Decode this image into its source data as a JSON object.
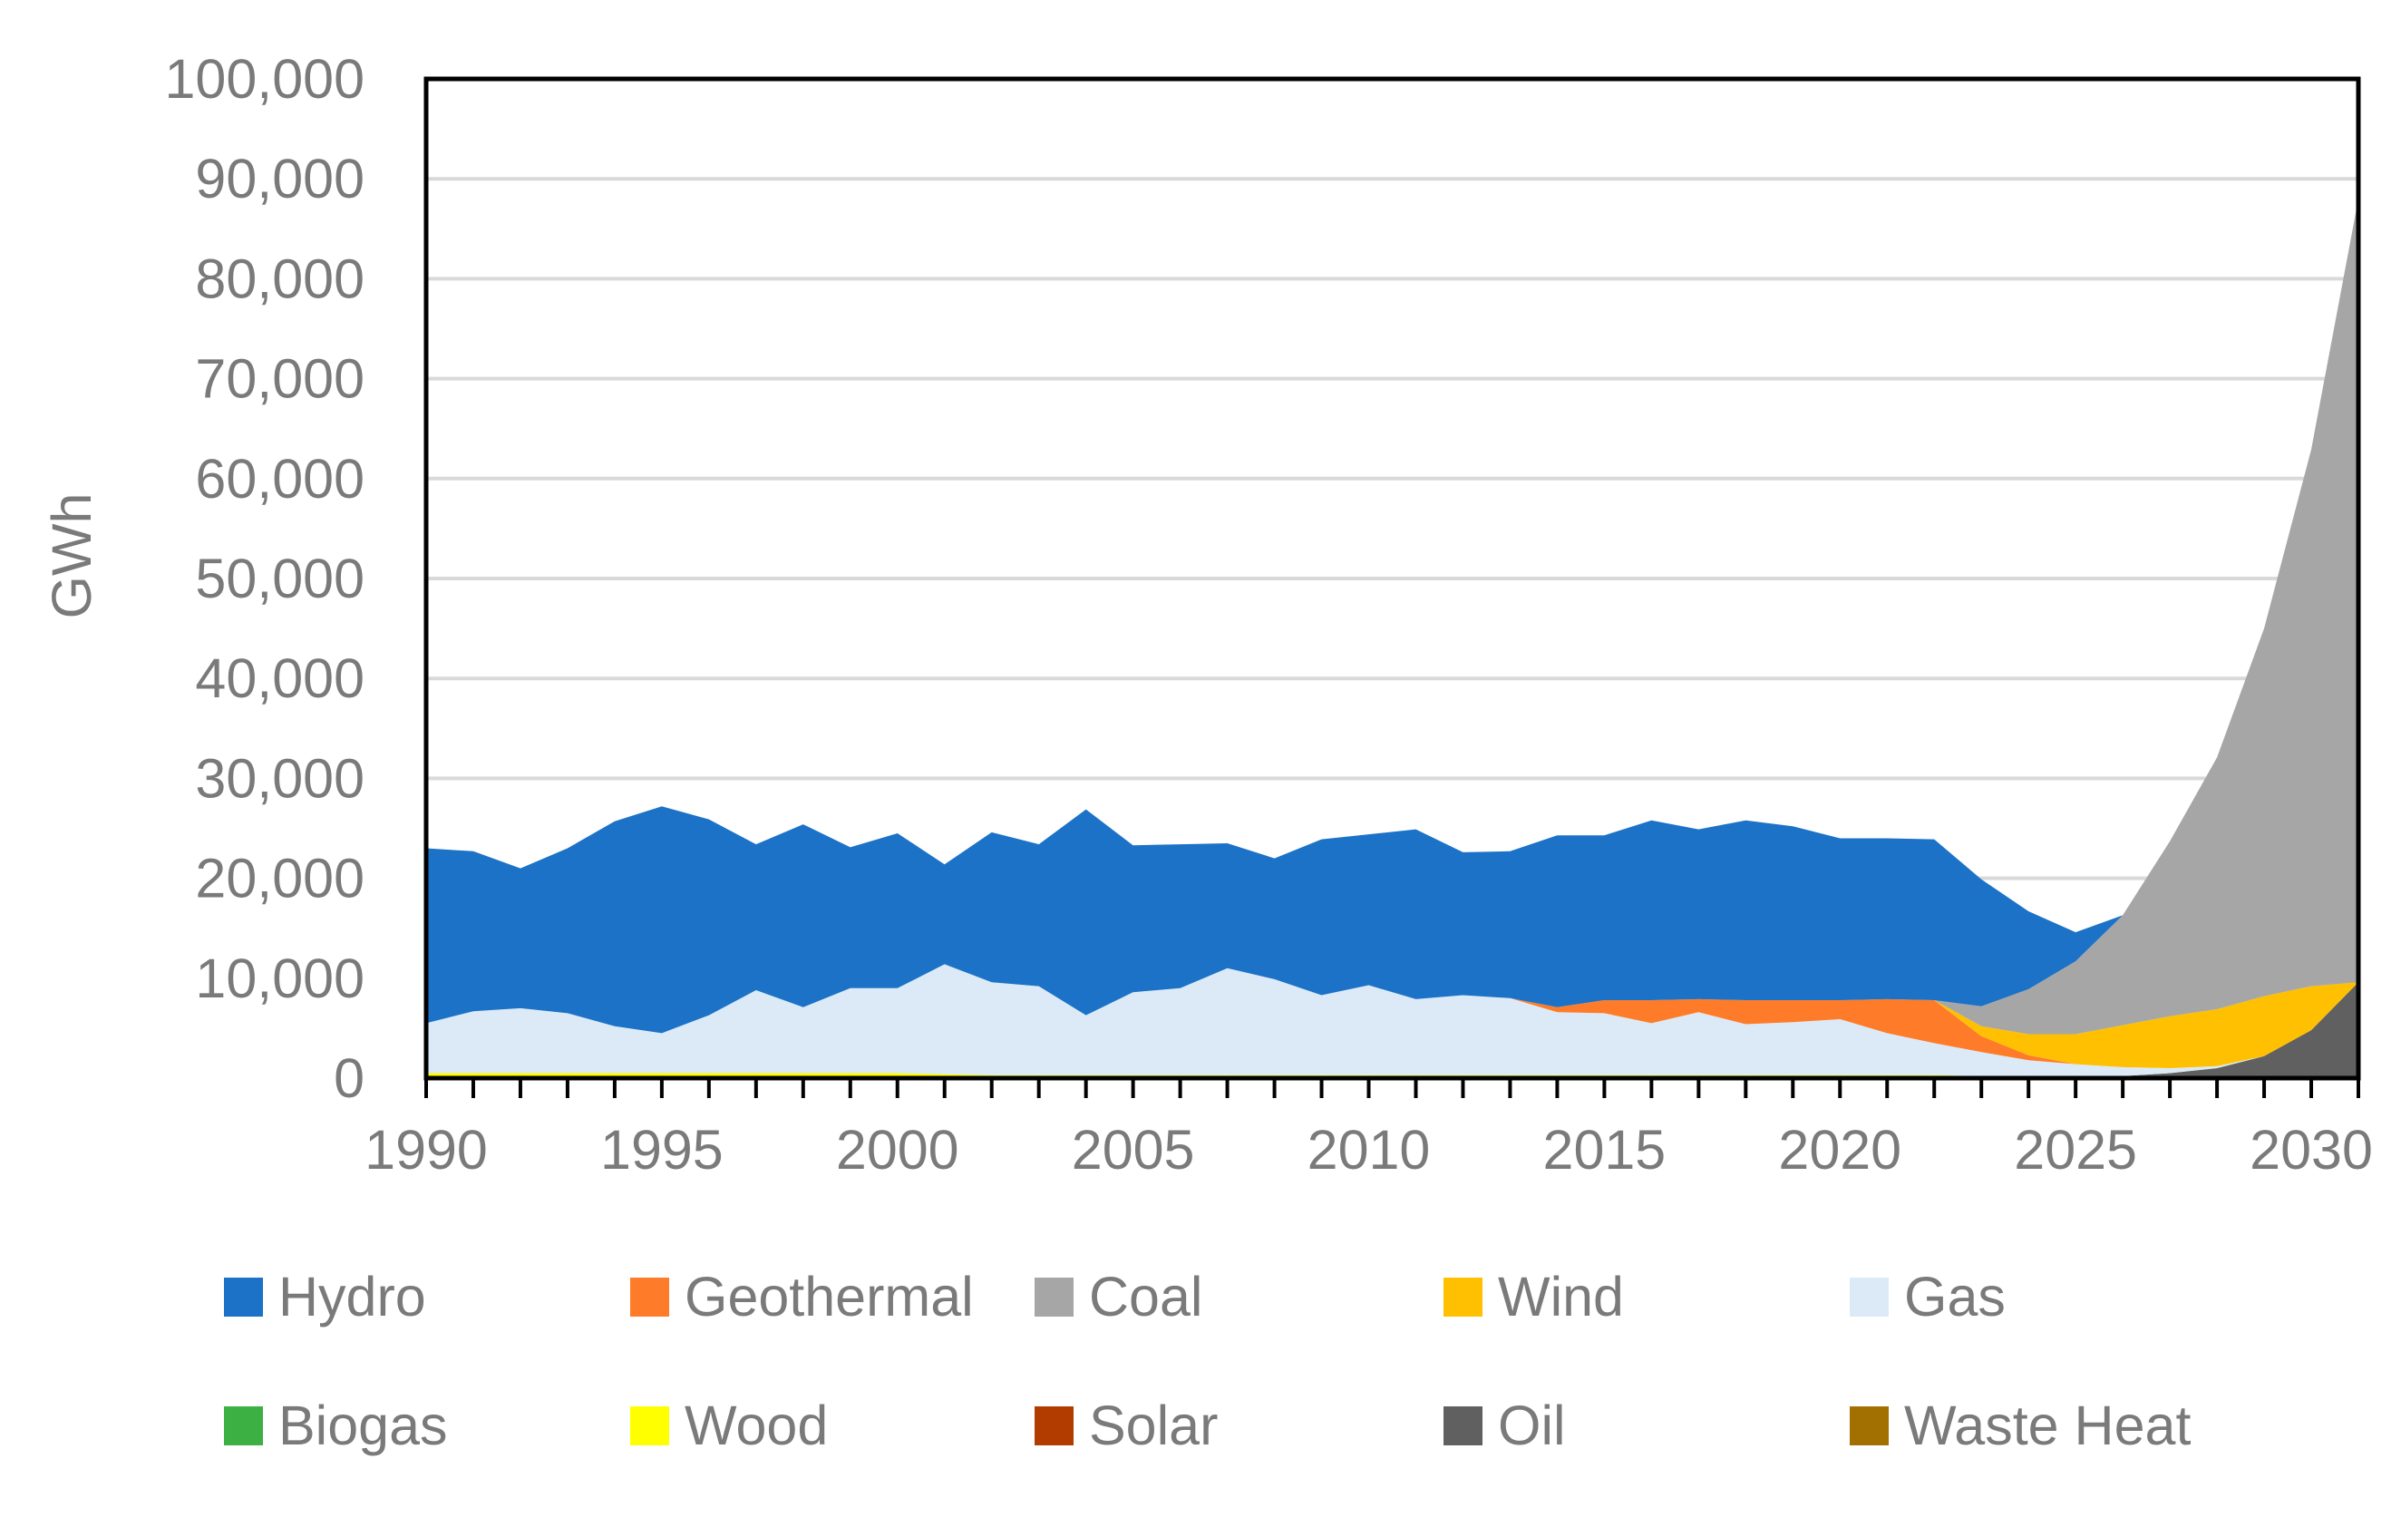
{
  "chart_data": {
    "type": "area",
    "stacked": true,
    "title": "",
    "xlabel": "",
    "ylabel": "GWh",
    "xlim": [
      1990,
      2031
    ],
    "ylim": [
      0,
      100000
    ],
    "grid": "horizontal",
    "legend_position": "bottom",
    "x_ticks": [
      {
        "value": 1990,
        "label": "1990"
      },
      {
        "value": 1995,
        "label": "1995"
      },
      {
        "value": 2000,
        "label": "2000"
      },
      {
        "value": 2005,
        "label": "2005"
      },
      {
        "value": 2010,
        "label": "2010"
      },
      {
        "value": 2015,
        "label": "2015"
      },
      {
        "value": 2020,
        "label": "2020"
      },
      {
        "value": 2025,
        "label": "2025"
      },
      {
        "value": 2030,
        "label": "2030"
      }
    ],
    "y_ticks": [
      {
        "value": 0,
        "label": "0"
      },
      {
        "value": 10000,
        "label": "10,000"
      },
      {
        "value": 20000,
        "label": "20,000"
      },
      {
        "value": 30000,
        "label": "30,000"
      },
      {
        "value": 40000,
        "label": "40,000"
      },
      {
        "value": 50000,
        "label": "50,000"
      },
      {
        "value": 60000,
        "label": "60,000"
      },
      {
        "value": 70000,
        "label": "70,000"
      },
      {
        "value": 80000,
        "label": "80,000"
      },
      {
        "value": 90000,
        "label": "90,000"
      },
      {
        "value": 100000,
        "label": "100,000"
      }
    ],
    "x": [
      1990,
      1991,
      1992,
      1993,
      1994,
      1995,
      1996,
      1997,
      1998,
      1999,
      2000,
      2001,
      2002,
      2003,
      2004,
      2005,
      2006,
      2007,
      2008,
      2009,
      2010,
      2011,
      2012,
      2013,
      2014,
      2015,
      2016,
      2017,
      2018,
      2019,
      2020,
      2021,
      2022,
      2023,
      2024,
      2025,
      2026,
      2027,
      2028,
      2029,
      2030,
      2031
    ],
    "series": [
      {
        "name": "Biogas",
        "color": "#3cb043",
        "values": [
          0,
          0,
          0,
          0,
          0,
          0,
          0,
          0,
          0,
          0,
          0,
          0,
          0,
          0,
          0,
          0,
          0,
          0,
          0,
          0,
          0,
          0,
          0,
          0,
          0,
          0,
          0,
          0,
          0,
          0,
          0,
          0,
          0,
          0,
          0,
          0,
          0,
          0,
          0,
          0,
          0,
          0
        ]
      },
      {
        "name": "Wood",
        "color": "#ffff00",
        "values": [
          500,
          500,
          500,
          500,
          500,
          500,
          500,
          500,
          500,
          500,
          500,
          400,
          300,
          300,
          300,
          300,
          300,
          300,
          300,
          300,
          300,
          300,
          300,
          300,
          300,
          300,
          300,
          300,
          300,
          300,
          300,
          300,
          300,
          200,
          100,
          0,
          0,
          0,
          0,
          0,
          0,
          0
        ]
      },
      {
        "name": "Solar",
        "color": "#b23c00",
        "values": [
          0,
          0,
          0,
          0,
          0,
          0,
          0,
          0,
          0,
          0,
          0,
          0,
          0,
          0,
          0,
          0,
          0,
          0,
          0,
          0,
          0,
          0,
          0,
          0,
          0,
          0,
          0,
          0,
          0,
          0,
          0,
          0,
          0,
          0,
          0,
          0,
          0,
          0,
          0,
          0,
          0,
          0
        ]
      },
      {
        "name": "Oil",
        "color": "#606060",
        "values": [
          0,
          0,
          0,
          0,
          0,
          0,
          0,
          0,
          0,
          0,
          0,
          0,
          0,
          0,
          0,
          0,
          0,
          0,
          0,
          0,
          0,
          0,
          0,
          0,
          0,
          0,
          0,
          0,
          0,
          0,
          0,
          0,
          0,
          0,
          0,
          100,
          200,
          500,
          1000,
          2200,
          4800,
          9600
        ]
      },
      {
        "name": "Waste Heat",
        "color": "#a27000",
        "values": [
          0,
          0,
          0,
          0,
          0,
          0,
          0,
          0,
          0,
          0,
          0,
          0,
          0,
          0,
          0,
          0,
          0,
          0,
          0,
          0,
          0,
          0,
          0,
          0,
          0,
          0,
          0,
          0,
          0,
          0,
          0,
          0,
          0,
          0,
          0,
          0,
          0,
          0,
          0,
          0,
          0,
          0
        ]
      },
      {
        "name": "Gas",
        "color": "#dbeaf6",
        "values": [
          5000,
          6200,
          6500,
          6000,
          4700,
          4000,
          5800,
          8300,
          6600,
          8500,
          8500,
          11000,
          9300,
          8900,
          6000,
          8300,
          8700,
          10700,
          9600,
          8000,
          9000,
          7600,
          8000,
          7700,
          6300,
          6200,
          5200,
          6300,
          5100,
          5300,
          5600,
          4200,
          3200,
          2400,
          1700,
          1300,
          900,
          500,
          200,
          0,
          0,
          0
        ]
      },
      {
        "name": "Geothermal",
        "color": "#fe7c29",
        "values": [
          0,
          0,
          0,
          0,
          0,
          0,
          0,
          0,
          0,
          0,
          0,
          0,
          0,
          0,
          0,
          0,
          0,
          0,
          0,
          0,
          0,
          0,
          0,
          0,
          500,
          1300,
          2300,
          1300,
          2400,
          2200,
          1900,
          3400,
          4300,
          1600,
          500,
          0,
          0,
          0,
          0,
          0,
          0,
          0
        ]
      },
      {
        "name": "Wind",
        "color": "#fec000",
        "values": [
          0,
          0,
          0,
          0,
          0,
          0,
          0,
          0,
          0,
          0,
          0,
          0,
          0,
          0,
          0,
          0,
          0,
          0,
          0,
          0,
          0,
          0,
          0,
          0,
          0,
          0,
          0,
          0,
          0,
          0,
          0,
          0,
          0,
          1000,
          2100,
          3000,
          4200,
          5200,
          5700,
          6000,
          4400,
          0
        ]
      },
      {
        "name": "Coal",
        "color": "#a6a6a6",
        "values": [
          0,
          0,
          0,
          0,
          0,
          0,
          0,
          0,
          0,
          0,
          0,
          0,
          0,
          0,
          0,
          0,
          0,
          0,
          0,
          0,
          0,
          0,
          0,
          0,
          0,
          0,
          0,
          0,
          0,
          0,
          0,
          0,
          0,
          2000,
          4500,
          7300,
          11000,
          17500,
          25200,
          36800,
          53700,
          78400
        ]
      },
      {
        "name": "Hydro",
        "color": "#1b72c7",
        "values": [
          17500,
          16000,
          14000,
          16500,
          20500,
          22700,
          19600,
          14600,
          18300,
          14100,
          15500,
          10000,
          15000,
          14200,
          20600,
          14700,
          14400,
          12500,
          12100,
          15600,
          15100,
          17000,
          14300,
          14700,
          17200,
          16500,
          18000,
          17000,
          18000,
          17400,
          16200,
          16100,
          16100,
          12700,
          7800,
          2900,
          0,
          0,
          0,
          0,
          0,
          0
        ]
      }
    ],
    "legend": [
      {
        "name": "Hydro",
        "color": "#1b72c7"
      },
      {
        "name": "Geothermal",
        "color": "#fe7c29"
      },
      {
        "name": "Coal",
        "color": "#a6a6a6"
      },
      {
        "name": "Wind",
        "color": "#fec000"
      },
      {
        "name": "Gas",
        "color": "#dbeaf6"
      },
      {
        "name": "Biogas",
        "color": "#3cb043"
      },
      {
        "name": "Wood",
        "color": "#ffff00"
      },
      {
        "name": "Solar",
        "color": "#b23c00"
      },
      {
        "name": "Oil",
        "color": "#606060"
      },
      {
        "name": "Waste Heat",
        "color": "#a27000"
      }
    ]
  }
}
